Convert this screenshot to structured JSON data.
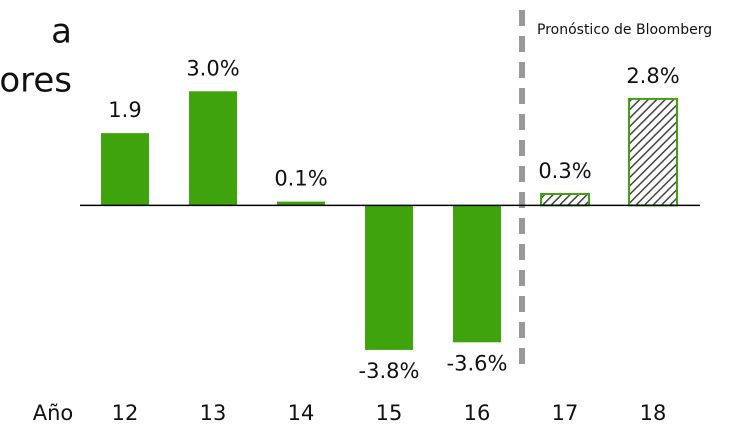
{
  "chart_data": {
    "type": "bar",
    "title_fragments": [
      "a",
      "ores"
    ],
    "xlabel": "Año",
    "annotation": "Pronóstico de Bloomberg",
    "categories": [
      "12",
      "13",
      "14",
      "15",
      "16",
      "17",
      "18"
    ],
    "values": [
      1.9,
      3.0,
      0.1,
      -3.8,
      -3.6,
      0.3,
      2.8
    ],
    "value_labels": [
      "1.9",
      "3.0%",
      "0.1%",
      "-3.8%",
      "-3.6%",
      "0.3%",
      "2.8%"
    ],
    "hatched": [
      false,
      false,
      false,
      false,
      false,
      true,
      true
    ],
    "color": "#3fa30e",
    "ylim": [
      -5.8,
      5.4
    ]
  }
}
